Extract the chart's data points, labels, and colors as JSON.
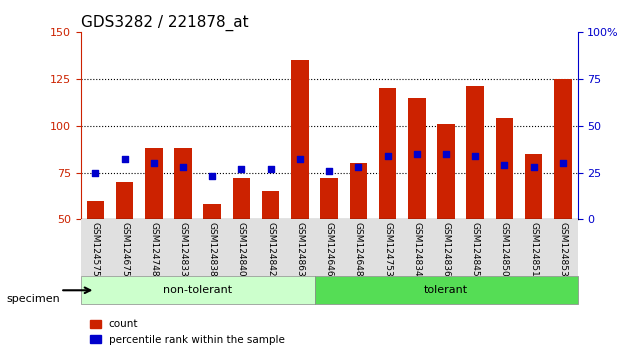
{
  "title": "GDS3282 / 221878_at",
  "categories": [
    "GSM124575",
    "GSM124675",
    "GSM124748",
    "GSM124833",
    "GSM124838",
    "GSM124840",
    "GSM124842",
    "GSM124863",
    "GSM124646",
    "GSM124648",
    "GSM124753",
    "GSM124834",
    "GSM124836",
    "GSM124845",
    "GSM124850",
    "GSM124851",
    "GSM124853"
  ],
  "bar_values": [
    60,
    70,
    88,
    88,
    58,
    72,
    65,
    135,
    72,
    80,
    120,
    115,
    101,
    121,
    104,
    85,
    125
  ],
  "dot_values": [
    75,
    82,
    80,
    78,
    73,
    77,
    77,
    82,
    76,
    78,
    84,
    85,
    85,
    84,
    79,
    78,
    80
  ],
  "bar_color": "#cc2200",
  "dot_color": "#0000cc",
  "ylim_left": [
    50,
    150
  ],
  "ylim_right": [
    0,
    100
  ],
  "yticks_left": [
    50,
    75,
    100,
    125,
    150
  ],
  "yticks_right": [
    0,
    25,
    50,
    75,
    100
  ],
  "group_labels": [
    "non-tolerant",
    "tolerant"
  ],
  "group_split": 8,
  "group_colors": [
    "#ccffcc",
    "#33dd33"
  ],
  "specimen_label": "specimen",
  "legend_count_label": "count",
  "legend_pct_label": "percentile rank within the sample",
  "bg_color": "#ffffff",
  "bar_width": 0.6,
  "dotted_line_color": "#000000",
  "title_fontsize": 11,
  "axis_fontsize": 9,
  "tick_fontsize": 8
}
